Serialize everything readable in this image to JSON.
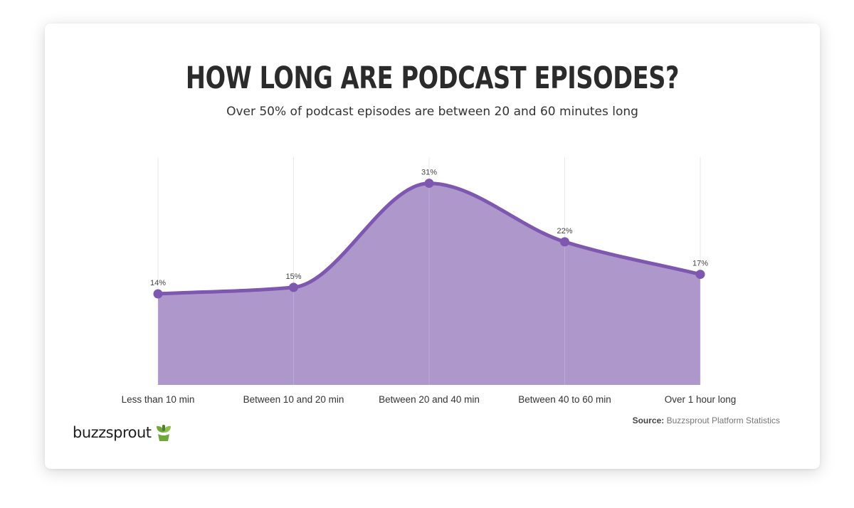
{
  "header": {
    "title": "HOW LONG ARE PODCAST EPISODES?",
    "subtitle": "Over 50% of podcast episodes are between 20 and 60 minutes long"
  },
  "footer": {
    "brand": "buzzsprout",
    "source_label": "Source:",
    "source_text": "Buzzsprout Platform Statistics"
  },
  "colors": {
    "fill": "#ae97cb",
    "line": "#7e57b0",
    "grid": "#e6e6e6"
  },
  "chart_data": {
    "type": "area",
    "title": "HOW LONG ARE PODCAST EPISODES?",
    "subtitle": "Over 50% of podcast episodes are between 20 and 60 minutes long",
    "categories": [
      "Less than 10 min",
      "Between 10 and 20 min",
      "Between 20 and 40 min",
      "Between 40 to 60 min",
      "Over 1 hour long"
    ],
    "values": [
      14,
      15,
      31,
      22,
      17
    ],
    "data_labels": [
      "14%",
      "15%",
      "31%",
      "22%",
      "17%"
    ],
    "ylim": [
      0,
      35
    ],
    "grid": true,
    "smooth": true,
    "legend": "none"
  }
}
